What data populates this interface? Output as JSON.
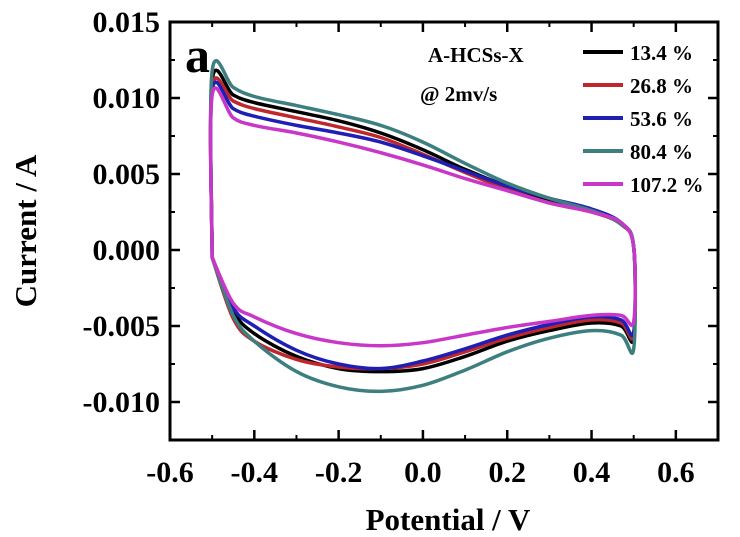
{
  "chart_data": {
    "type": "line",
    "panel_label": "a",
    "xlabel": "Potential / V",
    "ylabel": "Current  / A",
    "xlim": [
      -0.6,
      0.7
    ],
    "ylim": [
      -0.0125,
      0.015
    ],
    "xticks": [
      -0.6,
      -0.4,
      -0.2,
      0.0,
      0.2,
      0.4,
      0.6
    ],
    "xtick_labels": [
      "-0.6",
      "-0.4",
      "-0.2",
      "0.0",
      "0.2",
      "0.4",
      "0.6"
    ],
    "yticks": [
      -0.01,
      -0.005,
      0.0,
      0.005,
      0.01,
      0.015
    ],
    "ytick_labels": [
      "-0.010",
      "-0.005",
      "0.000",
      "0.005",
      "0.010",
      "0.015"
    ],
    "legend_title": [
      "A-HCSs-X",
      "@ 2mv/s"
    ],
    "legend_position": "top-right",
    "series": [
      {
        "name": "13.4 %",
        "color": "#000000",
        "x": [
          -0.5,
          -0.5,
          -0.45,
          -0.4,
          -0.3,
          -0.2,
          -0.1,
          0.0,
          0.1,
          0.2,
          0.3,
          0.4,
          0.47,
          0.5,
          0.5,
          0.47,
          0.4,
          0.3,
          0.2,
          0.1,
          0.0,
          -0.1,
          -0.2,
          -0.3,
          -0.4,
          -0.45,
          -0.5
        ],
        "y": [
          -0.0005,
          0.0112,
          0.0102,
          0.0097,
          0.0091,
          0.0085,
          0.0077,
          0.0066,
          0.0053,
          0.0042,
          0.0033,
          0.0026,
          0.0017,
          0.0002,
          -0.0058,
          -0.005,
          -0.0048,
          -0.0053,
          -0.006,
          -0.007,
          -0.0078,
          -0.008,
          -0.0078,
          -0.007,
          -0.0055,
          -0.004,
          -0.0005
        ]
      },
      {
        "name": "26.8 %",
        "color": "#c0272d",
        "x": [
          -0.5,
          -0.5,
          -0.45,
          -0.4,
          -0.3,
          -0.2,
          -0.1,
          0.0,
          0.1,
          0.2,
          0.3,
          0.4,
          0.47,
          0.5,
          0.5,
          0.47,
          0.4,
          0.3,
          0.2,
          0.1,
          0.0,
          -0.1,
          -0.2,
          -0.3,
          -0.4,
          -0.45,
          -0.5
        ],
        "y": [
          -0.0005,
          0.0107,
          0.0098,
          0.0093,
          0.0087,
          0.0081,
          0.0074,
          0.0063,
          0.0051,
          0.004,
          0.0031,
          0.0025,
          0.0017,
          0.0002,
          -0.0056,
          -0.0048,
          -0.0046,
          -0.0051,
          -0.0058,
          -0.0067,
          -0.0075,
          -0.0078,
          -0.0077,
          -0.0072,
          -0.006,
          -0.0045,
          -0.0005
        ]
      },
      {
        "name": "53.6 %",
        "color": "#1f1fb4",
        "x": [
          -0.5,
          -0.5,
          -0.45,
          -0.4,
          -0.3,
          -0.2,
          -0.1,
          0.0,
          0.1,
          0.2,
          0.3,
          0.4,
          0.47,
          0.5,
          0.5,
          0.47,
          0.4,
          0.3,
          0.2,
          0.1,
          0.0,
          -0.1,
          -0.2,
          -0.3,
          -0.4,
          -0.45,
          -0.5
        ],
        "y": [
          -0.0005,
          0.0105,
          0.0093,
          0.0088,
          0.0082,
          0.0077,
          0.0071,
          0.0062,
          0.0052,
          0.0042,
          0.0034,
          0.0027,
          0.0018,
          0.0002,
          -0.0054,
          -0.0046,
          -0.0044,
          -0.0049,
          -0.0056,
          -0.0065,
          -0.0073,
          -0.0078,
          -0.0075,
          -0.0066,
          -0.005,
          -0.0038,
          -0.0005
        ]
      },
      {
        "name": "80.4 %",
        "color": "#3d7f7f",
        "x": [
          -0.5,
          -0.5,
          -0.45,
          -0.4,
          -0.3,
          -0.2,
          -0.1,
          0.0,
          0.1,
          0.2,
          0.3,
          0.4,
          0.47,
          0.5,
          0.5,
          0.47,
          0.4,
          0.3,
          0.2,
          0.1,
          0.0,
          -0.1,
          -0.2,
          -0.3,
          -0.4,
          -0.45,
          -0.5
        ],
        "y": [
          -0.0005,
          0.0118,
          0.0107,
          0.0101,
          0.0095,
          0.0089,
          0.0082,
          0.0071,
          0.0057,
          0.0044,
          0.0034,
          0.0026,
          0.0017,
          0.0002,
          -0.0065,
          -0.0056,
          -0.0053,
          -0.0058,
          -0.0067,
          -0.0079,
          -0.0089,
          -0.0093,
          -0.009,
          -0.008,
          -0.006,
          -0.0043,
          -0.0005
        ]
      },
      {
        "name": "107.2 %",
        "color": "#c837c8",
        "x": [
          -0.5,
          -0.5,
          -0.45,
          -0.4,
          -0.3,
          -0.2,
          -0.1,
          0.0,
          0.1,
          0.2,
          0.3,
          0.4,
          0.47,
          0.5,
          0.5,
          0.47,
          0.4,
          0.3,
          0.2,
          0.1,
          0.0,
          -0.1,
          -0.2,
          -0.3,
          -0.4,
          -0.45,
          -0.5
        ],
        "y": [
          -0.0005,
          0.0102,
          0.0087,
          0.0082,
          0.0077,
          0.0071,
          0.0064,
          0.0056,
          0.0047,
          0.0039,
          0.0031,
          0.0025,
          0.0018,
          0.0002,
          -0.0047,
          -0.0043,
          -0.0043,
          -0.0047,
          -0.0051,
          -0.0056,
          -0.0061,
          -0.0063,
          -0.0061,
          -0.0055,
          -0.0044,
          -0.0035,
          -0.0005
        ]
      }
    ]
  }
}
